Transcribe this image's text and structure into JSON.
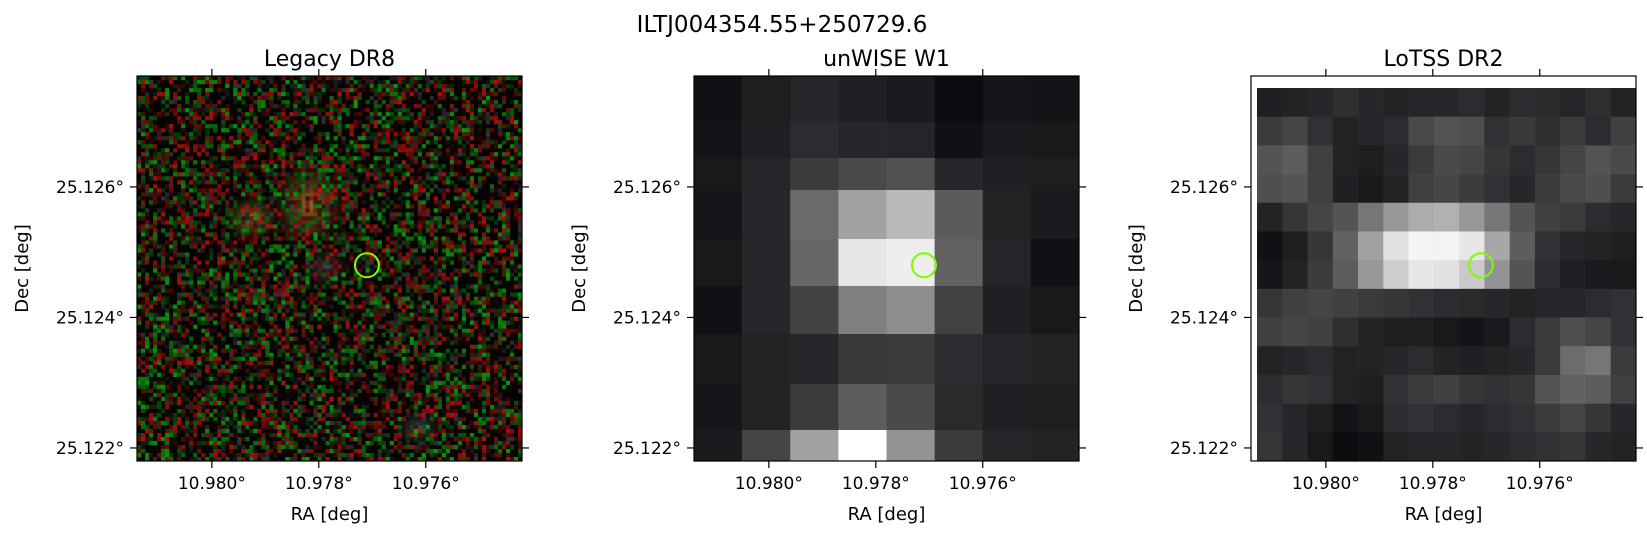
{
  "figure": {
    "title": "ILTJ004354.55+250729.6"
  },
  "colors": {
    "marker": "#7cfc00",
    "frame": "#000000",
    "background": "#ffffff"
  },
  "chart_data": [
    {
      "type": "heatmap",
      "title": "Legacy DR8",
      "image": "RGB optical cutout: noisy red/green pixels on black with faint orange-brown diffuse galaxy blobs near the top centre",
      "xlabel": "RA [deg]",
      "ylabel": "Dec [deg]",
      "xlim": [
        10.9814,
        10.9742
      ],
      "ylim": [
        25.1218,
        25.1277
      ],
      "xticks": [
        10.98,
        10.978,
        10.976
      ],
      "xtick_labels": [
        "10.980°",
        "10.978°",
        "10.976°"
      ],
      "yticks": [
        25.122,
        25.124,
        25.126
      ],
      "ytick_labels": [
        "25.122°",
        "25.124°",
        "25.126°"
      ],
      "marker": {
        "ra": 10.9771,
        "dec": 25.1248,
        "shape": "circle"
      },
      "grid": false
    },
    {
      "type": "heatmap",
      "title": "unWISE W1",
      "image": "coarse blue-grey pixel cutout with a bright source at the centre and a bright pixel at the bottom",
      "xlabel": "RA [deg]",
      "ylabel": "Dec [deg]",
      "xlim": [
        10.9814,
        10.9742
      ],
      "ylim": [
        25.1218,
        25.1277
      ],
      "xticks": [
        10.98,
        10.978,
        10.976
      ],
      "xtick_labels": [
        "10.980°",
        "10.978°",
        "10.976°"
      ],
      "yticks": [
        25.122,
        25.124,
        25.126
      ],
      "ytick_labels": [
        "25.122°",
        "25.124°",
        "25.126°"
      ],
      "marker": {
        "ra": 10.9771,
        "dec": 25.1248,
        "shape": "circle"
      },
      "grid": false
    },
    {
      "type": "heatmap",
      "title": "LoTSS DR2",
      "image": "radio cutout in blue-grey pixels with a bright elongated source at the centre",
      "xlabel": "RA [deg]",
      "ylabel": "Dec [deg]",
      "xlim": [
        10.9814,
        10.9742
      ],
      "ylim": [
        25.1218,
        25.1277
      ],
      "xticks": [
        10.98,
        10.978,
        10.976
      ],
      "xtick_labels": [
        "10.980°",
        "10.978°",
        "10.976°"
      ],
      "yticks": [
        25.122,
        25.124,
        25.126
      ],
      "ytick_labels": [
        "25.122°",
        "25.124°",
        "25.126°"
      ],
      "marker": {
        "ra": 10.9771,
        "dec": 25.1248,
        "shape": "circle"
      },
      "grid": false
    }
  ]
}
